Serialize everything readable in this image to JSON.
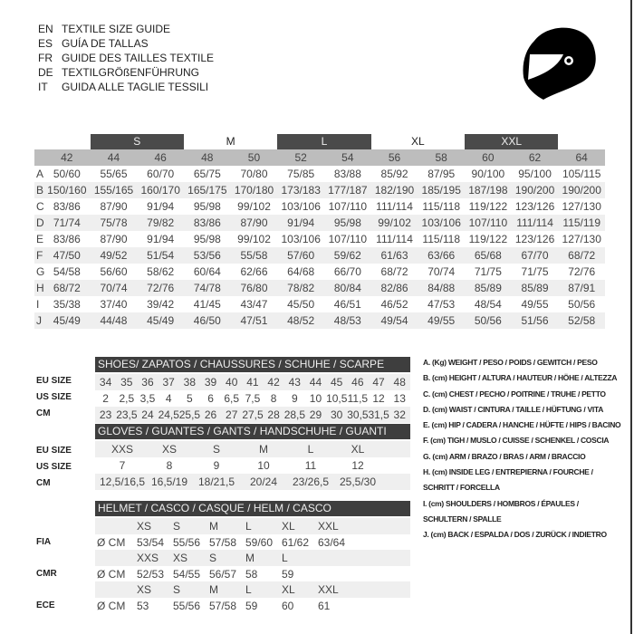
{
  "titles": [
    {
      "code": "EN",
      "text": "TEXTILE SIZE GUIDE"
    },
    {
      "code": "ES",
      "text": "GUÍA DE TALLAS"
    },
    {
      "code": "FR",
      "text": "GUIDE DES TAILLES TEXTILE"
    },
    {
      "code": "DE",
      "text": "TEXTILGRÖßENFÜHRUNG"
    },
    {
      "code": "IT",
      "text": "GUIDA ALLE TAGLIE TESSILI"
    }
  ],
  "helmet_icon": "helmet-icon",
  "textile": {
    "bands": [
      {
        "label": "",
        "span": 1,
        "dark": false
      },
      {
        "label": "S",
        "span": 2,
        "dark": true
      },
      {
        "label": "M",
        "span": 2,
        "dark": false
      },
      {
        "label": "L",
        "span": 2,
        "dark": true
      },
      {
        "label": "XL",
        "span": 2,
        "dark": false
      },
      {
        "label": "XXL",
        "span": 2,
        "dark": true
      },
      {
        "label": "",
        "span": 1,
        "dark": false
      }
    ],
    "columns": [
      "42",
      "44",
      "46",
      "48",
      "50",
      "52",
      "54",
      "56",
      "58",
      "60",
      "62",
      "64"
    ],
    "rows": [
      {
        "label": "A",
        "values": [
          "50/60",
          "55/65",
          "60/70",
          "65/75",
          "70/80",
          "75/85",
          "83/88",
          "85/92",
          "87/95",
          "90/100",
          "95/100",
          "105/115"
        ]
      },
      {
        "label": "B",
        "values": [
          "150/160",
          "155/165",
          "160/170",
          "165/175",
          "170/180",
          "173/183",
          "177/187",
          "182/190",
          "185/195",
          "187/198",
          "190/200",
          "190/200"
        ]
      },
      {
        "label": "C",
        "values": [
          "83/86",
          "87/90",
          "91/94",
          "95/98",
          "99/102",
          "103/106",
          "107/110",
          "111/114",
          "115/118",
          "119/122",
          "123/126",
          "127/130"
        ]
      },
      {
        "label": "D",
        "values": [
          "71/74",
          "75/78",
          "79/82",
          "83/86",
          "87/90",
          "91/94",
          "95/98",
          "99/102",
          "103/106",
          "107/110",
          "111/114",
          "115/119"
        ]
      },
      {
        "label": "E",
        "values": [
          "83/86",
          "87/90",
          "91/94",
          "95/98",
          "99/102",
          "103/106",
          "107/110",
          "111/114",
          "115/118",
          "119/122",
          "123/126",
          "127/130"
        ]
      },
      {
        "label": "F",
        "values": [
          "47/50",
          "49/52",
          "51/54",
          "53/56",
          "55/58",
          "57/60",
          "59/62",
          "61/63",
          "63/66",
          "65/68",
          "67/70",
          "68/72"
        ]
      },
      {
        "label": "G",
        "values": [
          "54/58",
          "56/60",
          "58/62",
          "60/64",
          "62/66",
          "64/68",
          "66/70",
          "68/72",
          "70/74",
          "71/75",
          "71/75",
          "72/76"
        ]
      },
      {
        "label": "H",
        "values": [
          "68/72",
          "70/74",
          "72/76",
          "74/78",
          "76/80",
          "78/82",
          "80/84",
          "82/86",
          "84/88",
          "85/89",
          "85/89",
          "87/91"
        ]
      },
      {
        "label": "I",
        "values": [
          "35/38",
          "37/40",
          "39/42",
          "41/45",
          "43/47",
          "45/50",
          "46/51",
          "46/52",
          "47/53",
          "48/54",
          "49/55",
          "50/56"
        ]
      },
      {
        "label": "J",
        "values": [
          "45/49",
          "44/48",
          "45/49",
          "46/50",
          "47/51",
          "48/52",
          "48/53",
          "49/54",
          "49/55",
          "50/56",
          "51/56",
          "52/58"
        ]
      }
    ]
  },
  "shoes": {
    "title": "SHOES/ ZAPATOS / CHAUSSURES / SCHUHE / SCARPE",
    "row_labels": [
      "EU SIZE",
      "US SIZE",
      "CM"
    ],
    "rows": [
      [
        "34",
        "35",
        "36",
        "37",
        "38",
        "39",
        "40",
        "41",
        "42",
        "43",
        "44",
        "45",
        "46",
        "47",
        "48"
      ],
      [
        "2",
        "2,5",
        "3,5",
        "4",
        "5",
        "6",
        "6,5",
        "7,5",
        "8",
        "9",
        "10",
        "10,5",
        "11,5",
        "12",
        "13"
      ],
      [
        "23",
        "23,5",
        "24",
        "24,5",
        "25,5",
        "26",
        "27",
        "27,5",
        "28",
        "28,5",
        "29",
        "30",
        "30,5",
        "31,5",
        "32"
      ]
    ]
  },
  "gloves": {
    "title": "GLOVES / GUANTES / GANTS / HANDSCHUHE / GUANTI",
    "row_labels": [
      "EU SIZE",
      "US SIZE",
      "CM"
    ],
    "rows": [
      [
        "XXS",
        "XS",
        "S",
        "M",
        "L",
        "XL"
      ],
      [
        "7",
        "8",
        "9",
        "10",
        "11",
        "12"
      ],
      [
        "12,5/16,5",
        "16,5/19",
        "18/21,5",
        "20/24",
        "23/26,5",
        "25,5/30"
      ]
    ]
  },
  "helmet": {
    "title": "HELMET / CASCO / CASQUE / HELM / CASCO",
    "standards": [
      {
        "label": "FIA",
        "unit": "Ø CM",
        "sizes": [
          "XS",
          "S",
          "M",
          "L",
          "XL",
          "XXL"
        ],
        "values": [
          "53/54",
          "55/56",
          "57/58",
          "59/60",
          "61/62",
          "63/64"
        ]
      },
      {
        "label": "CMR",
        "unit": "Ø CM",
        "sizes": [
          "XXS",
          "XS",
          "S",
          "M",
          "L",
          ""
        ],
        "values": [
          "52/53",
          "54/55",
          "56/57",
          "58",
          "59",
          ""
        ]
      },
      {
        "label": "ECE",
        "unit": "Ø CM",
        "sizes": [
          "XS",
          "S",
          "M",
          "L",
          "XL",
          "XXL"
        ],
        "values": [
          "53",
          "55/56",
          "57/58",
          "59",
          "60",
          "61"
        ]
      }
    ]
  },
  "legend": [
    "A. (Kg) WEIGHT / PESO / POIDS / GEWITCH / PESO",
    "B. (cm) HEIGHT / ALTURA / HAUTEUR / HÖHE / ALTEZZA",
    "C. (cm) CHEST / PECHO / POITRINE / TRUHE / PETTO",
    "D. (cm) WAIST / CINTURA / TAILLE / HÜFTUNG / VITA",
    "E. (cm) HIP / CADERA / HANCHE / HÜFTE / HIPS /  BACINO",
    "F.  (cm) TIGH / MUSLO / CUISSE / SCHENKEL / COSCIA",
    "G. (cm) ARM  / BRAZO / BRAS / ARM / BRACCIO",
    "H. (cm) INSIDE LEG / ENTREPIERNA / FOURCHE /",
    "SCHRITT / FORCELLA",
    "I.  (cm) SHOULDERS / HOMBROS / ÉPAULES /",
    "SCHULTERN / SPALLE",
    "J. (cm) BACK / ESPALDA / DOS / ZURÜCK / INDIETRO"
  ]
}
